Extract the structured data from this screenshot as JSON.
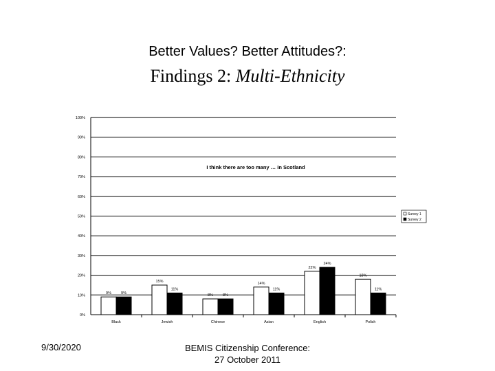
{
  "slide": {
    "supertitle": "Better Values? Better Attitudes?:",
    "title_main": "Findings 2: ",
    "title_italic": "Multi-Ethnicity",
    "footer_date": "9/30/2020",
    "footer_line1": "BEMIS Citizenship Conference:",
    "footer_line2": "27 October 2011"
  },
  "chart_data": {
    "type": "bar",
    "title": "I think there are too many … in Scotland",
    "categories": [
      "Black",
      "Jewish",
      "Chinese",
      "Asian",
      "English",
      "Polish"
    ],
    "series": [
      {
        "name": "Survey 1",
        "values": [
          9,
          15,
          8,
          14,
          22,
          18
        ],
        "labels": [
          "9%",
          "15%",
          "8%",
          "14%",
          "22%",
          "18%"
        ],
        "color": "#ffffff"
      },
      {
        "name": "Survey 2",
        "values": [
          9,
          11,
          8,
          11,
          24,
          11
        ],
        "labels": [
          "9%",
          "11%",
          "8%",
          "11%",
          "24%",
          "11%"
        ],
        "color": "#000000"
      }
    ],
    "yticks": [
      0,
      10,
      20,
      30,
      40,
      50,
      60,
      70,
      80,
      90,
      100
    ],
    "ytick_labels": [
      "0%",
      "10%",
      "20%",
      "30%",
      "40%",
      "50%",
      "60%",
      "70%",
      "80%",
      "90%",
      "100%"
    ],
    "ylim": [
      0,
      100
    ],
    "grid": true,
    "legend": "right"
  }
}
